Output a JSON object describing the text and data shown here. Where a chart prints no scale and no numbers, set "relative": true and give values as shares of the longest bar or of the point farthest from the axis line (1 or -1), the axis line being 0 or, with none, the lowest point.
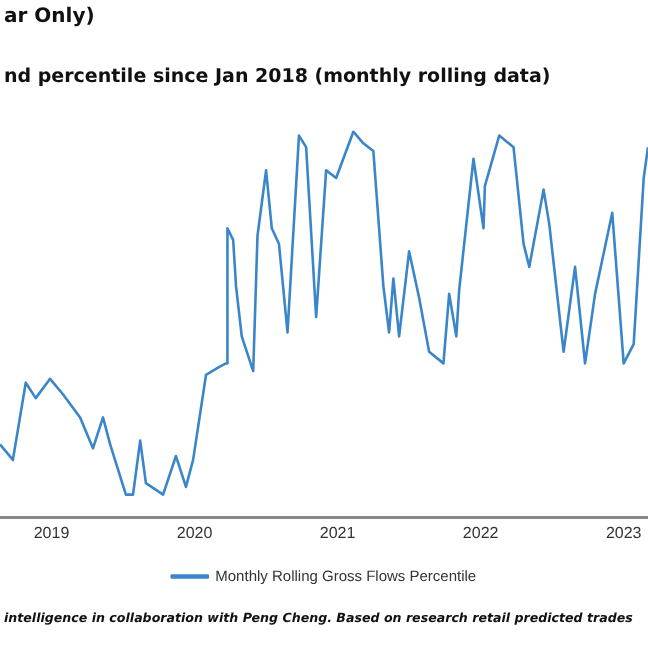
{
  "chart_data": {
    "type": "line",
    "title": "ar Only)",
    "subtitle": "nd percentile since Jan 2018 (monthly rolling data)",
    "annotations": [
      "intelligence in collaboration with Peng Cheng. Based on research retail predicted trades"
    ],
    "relative": true,
    "grid": false,
    "legend": "bottom",
    "marker": "none",
    "line_style": "solid",
    "xlim": [
      2018.64,
      2023.17
    ],
    "xticks": [
      2019,
      2020,
      2021,
      2022,
      2023
    ],
    "series": [
      {
        "name": "Monthly Rolling Gross Flows Percentile",
        "color": "#3a86c8",
        "x": [
          2018.64,
          2018.73,
          2018.82,
          2018.89,
          2018.99,
          2019.08,
          2019.2,
          2019.29,
          2019.36,
          2019.41,
          2019.52,
          2019.57,
          2019.62,
          2019.66,
          2019.78,
          2019.87,
          2019.94,
          2019.99,
          2020.08,
          2020.17,
          2020.22,
          2020.23,
          2020.27,
          2020.29,
          2020.33,
          2020.41,
          2020.44,
          2020.5,
          2020.54,
          2020.59,
          2020.65,
          2020.73,
          2020.78,
          2020.85,
          2020.92,
          2020.99,
          2021.11,
          2021.18,
          2021.25,
          2021.32,
          2021.36,
          2021.39,
          2021.43,
          2021.5,
          2021.57,
          2021.64,
          2021.74,
          2021.78,
          2021.83,
          2021.85,
          2021.95,
          2022.02,
          2022.03,
          2022.13,
          2022.23,
          2022.3,
          2022.34,
          2022.44,
          2022.48,
          2022.58,
          2022.66,
          2022.73,
          2022.8,
          2022.92,
          2023.0,
          2023.07,
          2023.14,
          2023.17
        ],
        "values": [
          0.19,
          0.15,
          0.35,
          0.31,
          0.36,
          0.32,
          0.26,
          0.18,
          0.26,
          0.19,
          0.06,
          0.06,
          0.2,
          0.09,
          0.06,
          0.16,
          0.08,
          0.15,
          0.37,
          0.39,
          0.4,
          0.75,
          0.72,
          0.6,
          0.47,
          0.38,
          0.73,
          0.9,
          0.75,
          0.71,
          0.48,
          0.99,
          0.96,
          0.52,
          0.9,
          0.88,
          1.0,
          0.97,
          0.95,
          0.6,
          0.48,
          0.62,
          0.47,
          0.69,
          0.57,
          0.43,
          0.4,
          0.58,
          0.47,
          0.59,
          0.93,
          0.75,
          0.86,
          0.99,
          0.96,
          0.71,
          0.65,
          0.85,
          0.76,
          0.43,
          0.65,
          0.4,
          0.58,
          0.79,
          0.4,
          0.45,
          0.88,
          0.96
        ]
      }
    ]
  }
}
